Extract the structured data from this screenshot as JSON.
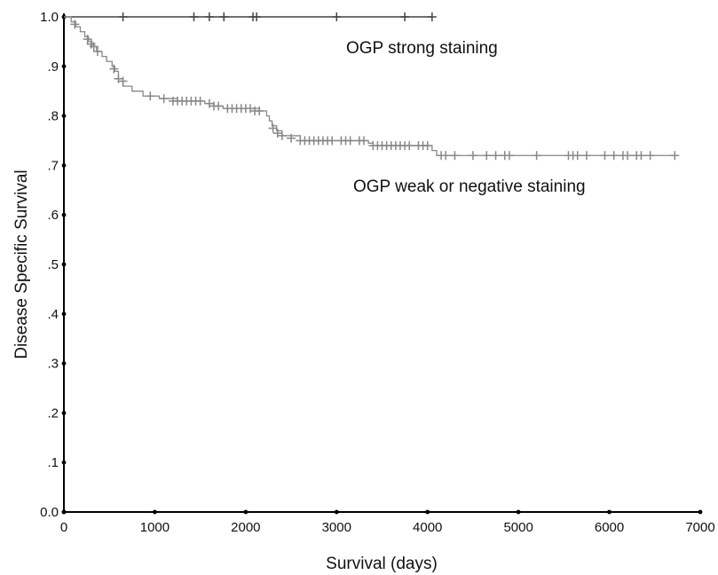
{
  "chart_data": {
    "type": "line",
    "subtype": "kaplan-meier",
    "title": "",
    "xlabel": "Survival (days)",
    "ylabel": "Disease Specific Survival",
    "xlim": [
      0,
      7000
    ],
    "ylim": [
      0,
      1
    ],
    "x_ticks": [
      0,
      1000,
      2000,
      3000,
      4000,
      5000,
      6000,
      7000
    ],
    "x_tick_labels": [
      "0",
      "1000",
      "2000",
      "3000",
      "4000",
      "5000",
      "6000",
      "7000"
    ],
    "y_ticks": [
      0,
      0.1,
      0.2,
      0.3,
      0.4,
      0.5,
      0.6,
      0.7,
      0.8,
      0.9,
      1.0
    ],
    "y_tick_labels": [
      "0.0",
      ".1",
      ".2",
      ".3",
      ".4",
      ".5",
      ".6",
      ".7",
      ".8",
      ".9",
      "1.0"
    ],
    "grid": false,
    "legend": "none",
    "annotations": [
      {
        "text": "OGP strong staining",
        "x": 3100,
        "y": 0.955
      },
      {
        "text": "OGP weak or negative staining",
        "x": 3100,
        "y": 0.695
      }
    ],
    "series": [
      {
        "color": "#444444",
        "steps": [
          [
            0,
            1.0
          ],
          [
            4050,
            1.0
          ]
        ],
        "censored": [
          [
            650,
            1.0
          ],
          [
            1430,
            1.0
          ],
          [
            1600,
            1.0
          ],
          [
            1760,
            1.0
          ],
          [
            2080,
            1.0
          ],
          [
            2120,
            1.0
          ],
          [
            3000,
            1.0
          ],
          [
            3750,
            1.0
          ],
          [
            4050,
            1.0
          ]
        ]
      },
      {
        "color": "#888888",
        "steps": [
          [
            0,
            1.0
          ],
          [
            80,
            0.99
          ],
          [
            130,
            0.98
          ],
          [
            180,
            0.97
          ],
          [
            230,
            0.96
          ],
          [
            270,
            0.95
          ],
          [
            310,
            0.94
          ],
          [
            360,
            0.93
          ],
          [
            420,
            0.92
          ],
          [
            470,
            0.91
          ],
          [
            530,
            0.9
          ],
          [
            560,
            0.89
          ],
          [
            600,
            0.875
          ],
          [
            650,
            0.86
          ],
          [
            750,
            0.85
          ],
          [
            870,
            0.84
          ],
          [
            1050,
            0.835
          ],
          [
            1250,
            0.83
          ],
          [
            1550,
            0.825
          ],
          [
            1650,
            0.82
          ],
          [
            1750,
            0.815
          ],
          [
            2150,
            0.81
          ],
          [
            2230,
            0.8
          ],
          [
            2260,
            0.79
          ],
          [
            2290,
            0.78
          ],
          [
            2340,
            0.77
          ],
          [
            2400,
            0.76
          ],
          [
            2600,
            0.75
          ],
          [
            3350,
            0.745
          ],
          [
            3400,
            0.74
          ],
          [
            4050,
            0.73
          ],
          [
            4100,
            0.72
          ],
          [
            6750,
            0.72
          ]
        ],
        "censored": [
          [
            120,
            0.985
          ],
          [
            260,
            0.955
          ],
          [
            300,
            0.945
          ],
          [
            330,
            0.94
          ],
          [
            370,
            0.93
          ],
          [
            550,
            0.895
          ],
          [
            600,
            0.875
          ],
          [
            650,
            0.87
          ],
          [
            950,
            0.84
          ],
          [
            1100,
            0.835
          ],
          [
            1200,
            0.83
          ],
          [
            1250,
            0.83
          ],
          [
            1300,
            0.83
          ],
          [
            1350,
            0.83
          ],
          [
            1400,
            0.83
          ],
          [
            1450,
            0.83
          ],
          [
            1500,
            0.83
          ],
          [
            1600,
            0.825
          ],
          [
            1650,
            0.82
          ],
          [
            1700,
            0.82
          ],
          [
            1800,
            0.815
          ],
          [
            1850,
            0.815
          ],
          [
            1900,
            0.815
          ],
          [
            1950,
            0.815
          ],
          [
            2000,
            0.815
          ],
          [
            2050,
            0.815
          ],
          [
            2100,
            0.81
          ],
          [
            2150,
            0.81
          ],
          [
            2300,
            0.775
          ],
          [
            2350,
            0.765
          ],
          [
            2400,
            0.76
          ],
          [
            2500,
            0.755
          ],
          [
            2600,
            0.75
          ],
          [
            2650,
            0.75
          ],
          [
            2700,
            0.75
          ],
          [
            2750,
            0.75
          ],
          [
            2800,
            0.75
          ],
          [
            2850,
            0.75
          ],
          [
            2900,
            0.75
          ],
          [
            2950,
            0.75
          ],
          [
            3050,
            0.75
          ],
          [
            3100,
            0.75
          ],
          [
            3150,
            0.75
          ],
          [
            3250,
            0.75
          ],
          [
            3300,
            0.75
          ],
          [
            3400,
            0.74
          ],
          [
            3450,
            0.74
          ],
          [
            3500,
            0.74
          ],
          [
            3550,
            0.74
          ],
          [
            3600,
            0.74
          ],
          [
            3650,
            0.74
          ],
          [
            3700,
            0.74
          ],
          [
            3750,
            0.74
          ],
          [
            3800,
            0.74
          ],
          [
            3900,
            0.74
          ],
          [
            3950,
            0.74
          ],
          [
            4000,
            0.74
          ],
          [
            4150,
            0.72
          ],
          [
            4200,
            0.72
          ],
          [
            4300,
            0.72
          ],
          [
            4500,
            0.72
          ],
          [
            4650,
            0.72
          ],
          [
            4750,
            0.72
          ],
          [
            4850,
            0.72
          ],
          [
            4900,
            0.72
          ],
          [
            5200,
            0.72
          ],
          [
            5550,
            0.72
          ],
          [
            5600,
            0.72
          ],
          [
            5650,
            0.72
          ],
          [
            5750,
            0.72
          ],
          [
            5950,
            0.72
          ],
          [
            6050,
            0.72
          ],
          [
            6150,
            0.72
          ],
          [
            6200,
            0.72
          ],
          [
            6300,
            0.72
          ],
          [
            6350,
            0.72
          ],
          [
            6450,
            0.72
          ],
          [
            6720,
            0.72
          ]
        ]
      }
    ]
  }
}
